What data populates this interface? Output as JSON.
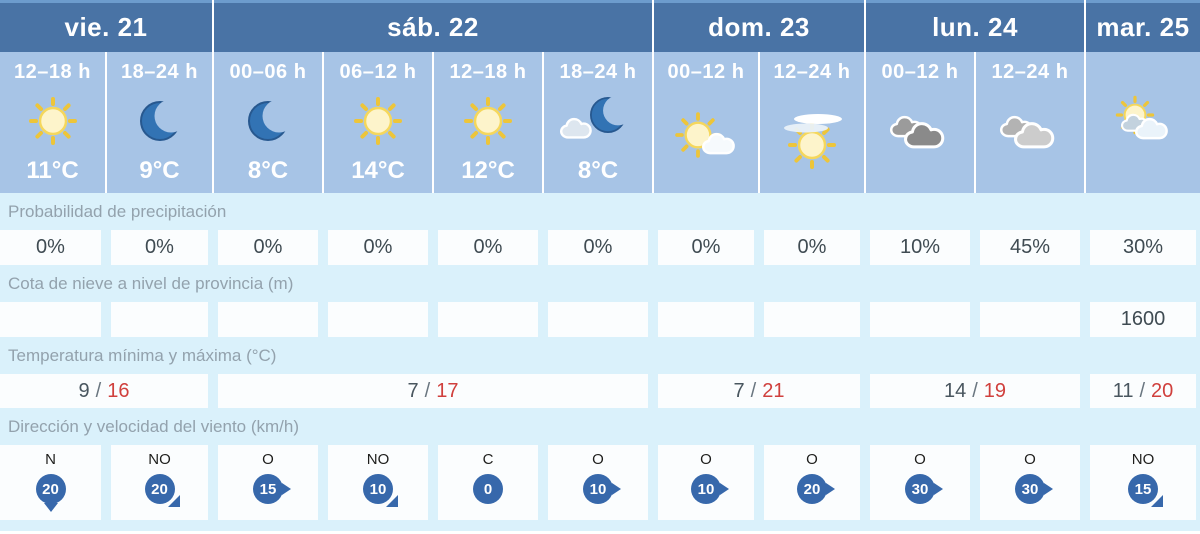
{
  "days": [
    {
      "label": "vie. 21",
      "span": 2
    },
    {
      "label": "sáb. 22",
      "span": 4
    },
    {
      "label": "dom. 23",
      "span": 2
    },
    {
      "label": "lun. 24",
      "span": 2
    },
    {
      "label": "mar. 25",
      "span": 1
    }
  ],
  "columns": [
    {
      "hour": "12–18 h",
      "icon": "sun",
      "temp": "11°C"
    },
    {
      "hour": "18–24 h",
      "icon": "moon",
      "temp": "9°C"
    },
    {
      "hour": "00–06 h",
      "icon": "moon",
      "temp": "8°C"
    },
    {
      "hour": "06–12 h",
      "icon": "sun",
      "temp": "14°C"
    },
    {
      "hour": "12–18 h",
      "icon": "sun",
      "temp": "12°C"
    },
    {
      "hour": "18–24 h",
      "icon": "moon-cloud",
      "temp": "8°C"
    },
    {
      "hour": "00–12 h",
      "icon": "sun-cloud",
      "temp": ""
    },
    {
      "hour": "12–24 h",
      "icon": "sun-high-clouds",
      "temp": ""
    },
    {
      "hour": "00–12 h",
      "icon": "clouds-dark",
      "temp": ""
    },
    {
      "hour": "12–24 h",
      "icon": "clouds-gray",
      "temp": ""
    },
    {
      "hour": "",
      "icon": "sun-clouds-light",
      "temp": ""
    }
  ],
  "rows": {
    "precipitation": {
      "label": "Probabilidad de precipitación",
      "values": [
        "0%",
        "0%",
        "0%",
        "0%",
        "0%",
        "0%",
        "0%",
        "0%",
        "10%",
        "45%",
        "30%"
      ]
    },
    "snow": {
      "label": "Cota de nieve a nivel de provincia (m)",
      "values": [
        "",
        "",
        "",
        "",
        "",
        "",
        "",
        "",
        "",
        "",
        "1600"
      ]
    },
    "temperature": {
      "label": "Temperatura mínima y máxima (°C)",
      "separator": "/",
      "values": [
        {
          "min": "9",
          "max": "16"
        },
        {
          "min": "7",
          "max": "17"
        },
        {
          "min": "7",
          "max": "21"
        },
        {
          "min": "14",
          "max": "19"
        },
        {
          "min": "11",
          "max": "20"
        }
      ]
    },
    "wind": {
      "label": "Dirección y velocidad del viento (km/h)",
      "values": [
        {
          "dir": "N",
          "speed": "20",
          "arrow": "down"
        },
        {
          "dir": "NO",
          "speed": "20",
          "arrow": "se"
        },
        {
          "dir": "O",
          "speed": "15",
          "arrow": "right"
        },
        {
          "dir": "NO",
          "speed": "10",
          "arrow": "se"
        },
        {
          "dir": "C",
          "speed": "0",
          "arrow": "none"
        },
        {
          "dir": "O",
          "speed": "10",
          "arrow": "right"
        },
        {
          "dir": "O",
          "speed": "10",
          "arrow": "right"
        },
        {
          "dir": "O",
          "speed": "20",
          "arrow": "right"
        },
        {
          "dir": "O",
          "speed": "30",
          "arrow": "right"
        },
        {
          "dir": "O",
          "speed": "30",
          "arrow": "right"
        },
        {
          "dir": "NO",
          "speed": "15",
          "arrow": "se"
        }
      ]
    }
  },
  "colors": {
    "day_header": "#4973a5",
    "day_header_top": "#6d9ccd",
    "hour_cell": "#a7c4e6",
    "band_cyan": "#daf1fb",
    "value_cell": "#fbfdfe",
    "max_temp_red": "#d0403d",
    "wind_badge_blue": "#3768ab"
  }
}
